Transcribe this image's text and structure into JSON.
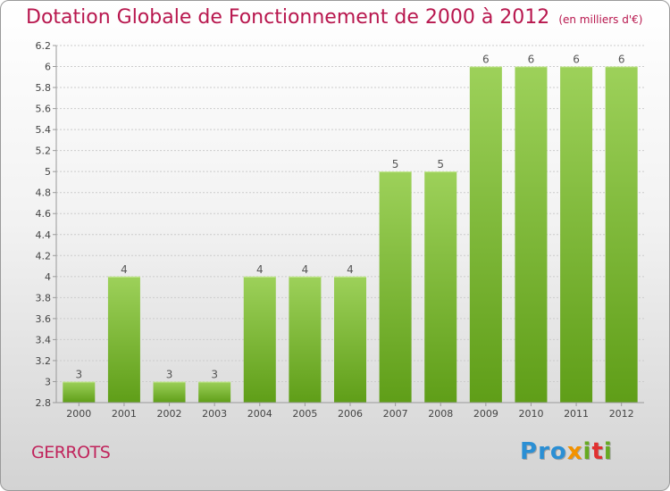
{
  "header": {
    "title": "Dotation Globale de Fonctionnement de 2000 à 2012",
    "subtitle": "(en milliers d'€)"
  },
  "footer": {
    "place": "GERROTS",
    "logo_text": "Proxiti",
    "logo_letters": [
      {
        "ch": "P",
        "color": "#2b8fd4"
      },
      {
        "ch": "r",
        "color": "#2b8fd4"
      },
      {
        "ch": "o",
        "color": "#2b8fd4"
      },
      {
        "ch": "x",
        "color": "#f39200"
      },
      {
        "ch": "i",
        "color": "#66aa22"
      },
      {
        "ch": "t",
        "color": "#e03030"
      },
      {
        "ch": "i",
        "color": "#66aa22"
      }
    ]
  },
  "colors": {
    "bar_top": "#9dd15a",
    "bar_bottom": "#5f9e18",
    "title": "#b8174e",
    "grid": "#cccccc"
  },
  "chart_data": {
    "type": "bar",
    "categories": [
      "2000",
      "2001",
      "2002",
      "2003",
      "2004",
      "2005",
      "2006",
      "2007",
      "2008",
      "2009",
      "2010",
      "2011",
      "2012"
    ],
    "values": [
      3,
      4,
      3,
      3,
      4,
      4,
      4,
      5,
      5,
      6,
      6,
      6,
      6
    ],
    "value_labels": [
      "3",
      "4",
      "3",
      "3",
      "4",
      "4",
      "4",
      "5",
      "5",
      "6",
      "6",
      "6",
      "6"
    ],
    "y_axis_ticks": [
      "2.8",
      "3",
      "3.2",
      "3.4",
      "3.6",
      "3.8",
      "4",
      "4.2",
      "4.4",
      "4.6",
      "4.8",
      "5",
      "5.2",
      "5.4",
      "5.6",
      "5.8",
      "6",
      "6.2"
    ],
    "ylim": [
      2.8,
      6.2
    ],
    "grid": true,
    "title": "Dotation Globale de Fonctionnement de 2000 à 2012",
    "ylabel": "",
    "xlabel": ""
  }
}
